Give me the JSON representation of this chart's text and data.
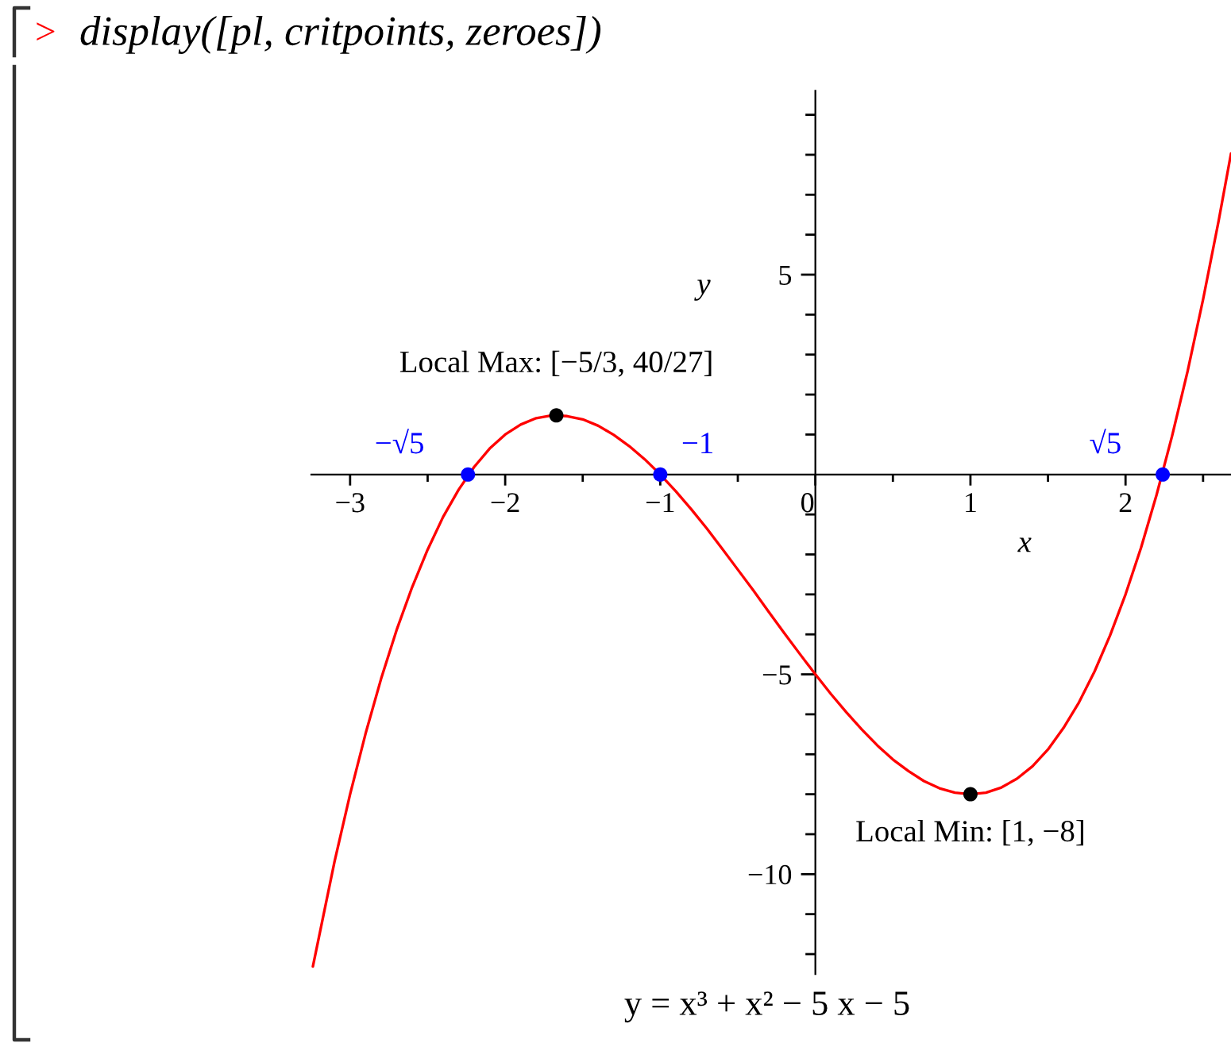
{
  "chart_data": {
    "type": "line",
    "xlabel": "x",
    "ylabel": "y",
    "annotations": [
      ">",
      "display([pl, critpoints, zeroes])",
      "y = x³ + x² − 5 x − 5",
      {
        "text": "Local Max: [−5/3, 40/27]",
        "x": -1.67,
        "y": 1.48
      },
      {
        "text": "Local Min: [1, −8]",
        "x": 1,
        "y": -8
      },
      {
        "text": "−√5",
        "x": -2.24,
        "y": 0
      },
      {
        "text": "−1",
        "x": -1,
        "y": 0
      },
      {
        "text": "√5",
        "x": 2.24,
        "y": 0
      }
    ],
    "xlim": [
      -3.25,
      2.68
    ],
    "ylim": [
      -12.5,
      9.6
    ],
    "xticks": [
      {
        "value": -3,
        "label": "−3"
      },
      {
        "value": -2.5,
        "label": null
      },
      {
        "value": -2,
        "label": "−2"
      },
      {
        "value": -1.5,
        "label": null
      },
      {
        "value": -1,
        "label": "−1"
      },
      {
        "value": -0.5,
        "label": null
      },
      0,
      {
        "value": 0.5,
        "label": null
      },
      1,
      {
        "value": 1.5,
        "label": null
      },
      2,
      {
        "value": 2.5,
        "label": null
      }
    ],
    "yticks": [
      {
        "value": -12,
        "label": null
      },
      {
        "value": -11,
        "label": null
      },
      {
        "value": -10,
        "label": "−10"
      },
      {
        "value": -9,
        "label": null
      },
      {
        "value": -8,
        "label": null
      },
      {
        "value": -7,
        "label": null
      },
      {
        "value": -6,
        "label": null
      },
      {
        "value": -5,
        "label": "−5"
      },
      {
        "value": -4,
        "label": null
      },
      {
        "value": -3,
        "label": null
      },
      {
        "value": -2,
        "label": null
      },
      {
        "value": -1,
        "label": null
      },
      {
        "value": 1,
        "label": null
      },
      {
        "value": 2,
        "label": null
      },
      {
        "value": 3,
        "label": null
      },
      {
        "value": 4,
        "label": null
      },
      5,
      {
        "value": 6,
        "label": null
      },
      {
        "value": 7,
        "label": null
      },
      {
        "value": 8,
        "label": null
      },
      {
        "value": 9,
        "label": null
      }
    ],
    "series": [
      {
        "color": "#ff0000",
        "marker": "none",
        "line_style": "solid",
        "x": [
          -3.24,
          -3.1,
          -3.0,
          -2.9,
          -2.8,
          -2.7,
          -2.6,
          -2.5,
          -2.4,
          -2.3,
          -2.2,
          -2.1,
          -2.0,
          -1.9,
          -1.8,
          -1.7,
          -1.6,
          -1.5,
          -1.4,
          -1.3,
          -1.2,
          -1.1,
          -1.0,
          -0.9,
          -0.8,
          -0.7,
          -0.6,
          -0.5,
          -0.4,
          -0.3,
          -0.2,
          -0.1,
          0.0,
          0.1,
          0.2,
          0.3,
          0.4,
          0.5,
          0.6,
          0.7,
          0.8,
          0.9,
          1.0,
          1.1,
          1.2,
          1.3,
          1.4,
          1.5,
          1.6,
          1.7,
          1.8,
          1.9,
          2.0,
          2.1,
          2.2,
          2.3,
          2.4,
          2.5,
          2.6,
          2.68
        ],
        "values": [
          -12.31,
          -9.68,
          -8.0,
          -6.48,
          -5.11,
          -3.89,
          -2.82,
          -1.88,
          -1.06,
          -0.38,
          0.19,
          0.65,
          1.0,
          1.25,
          1.41,
          1.48,
          1.46,
          1.38,
          1.22,
          0.99,
          0.71,
          0.38,
          0.0,
          -0.42,
          -0.87,
          -1.35,
          -1.86,
          -2.38,
          -2.9,
          -3.44,
          -3.97,
          -4.49,
          -5.0,
          -5.49,
          -5.95,
          -6.38,
          -6.78,
          -7.13,
          -7.42,
          -7.67,
          -7.85,
          -7.96,
          -8.0,
          -7.96,
          -7.83,
          -7.61,
          -7.3,
          -6.88,
          -6.34,
          -5.7,
          -4.93,
          -4.03,
          -3.0,
          -1.83,
          -0.51,
          0.96,
          2.58,
          4.38,
          6.34,
          8.03
        ]
      },
      {
        "type": "scatter",
        "color": "#000000",
        "marker": "circle",
        "x": [
          -1.67,
          1
        ],
        "values": [
          1.48,
          -8
        ]
      },
      {
        "type": "scatter",
        "color": "#0000ff",
        "marker": "circle",
        "x": [
          -2.24,
          -1,
          2.24
        ],
        "values": [
          0,
          0,
          0
        ]
      }
    ]
  }
}
